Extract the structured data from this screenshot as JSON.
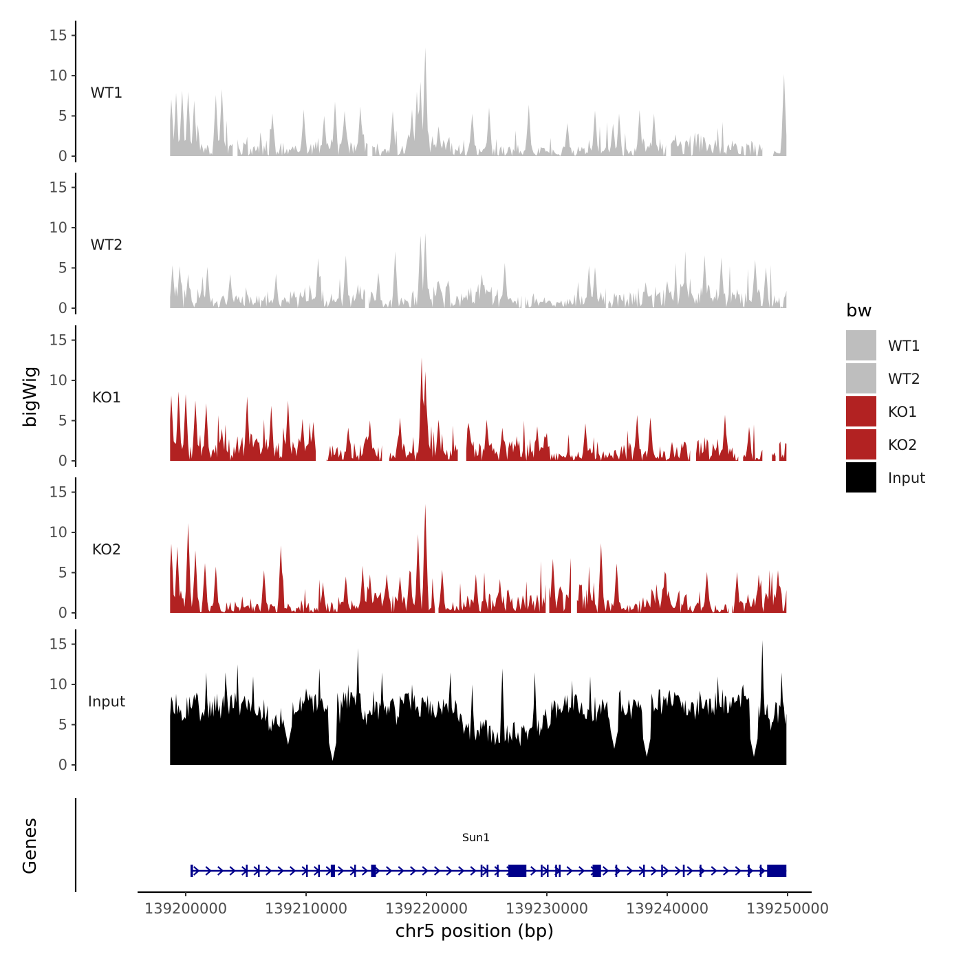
{
  "chart_data": {
    "type": "area",
    "chromosome": "chr5",
    "xlabel": "chr5 position (bp)",
    "ylabel": "bigWig",
    "genes_ylabel": "Genes",
    "xlim": [
      139196000,
      139252000
    ],
    "xticks": [
      139200000,
      139210000,
      139220000,
      139230000,
      139240000,
      139250000
    ],
    "ylim": [
      0,
      16
    ],
    "yticks": [
      0,
      5,
      10,
      15
    ],
    "legend": {
      "title": "bw",
      "position": "right",
      "entries": [
        {
          "label": "WT1",
          "color": "#bebebe"
        },
        {
          "label": "WT2",
          "color": "#bebebe"
        },
        {
          "label": "KO1",
          "color": "#b22222"
        },
        {
          "label": "KO2",
          "color": "#b22222"
        },
        {
          "label": "Input",
          "color": "#000000"
        }
      ]
    },
    "series": [
      {
        "name": "WT1",
        "color": "#bebebe",
        "x_start": 139198700,
        "bin_bp": 100,
        "gaps": [
          [
            139204000,
            139204250
          ],
          [
            139215200,
            139215400
          ],
          [
            139240000,
            139240250
          ],
          [
            139248000,
            139248750
          ]
        ],
        "peaks": [
          [
            139198800,
            7
          ],
          [
            139199200,
            7.5
          ],
          [
            139199700,
            8
          ],
          [
            139200200,
            8
          ],
          [
            139200700,
            6.5
          ],
          [
            139203000,
            8
          ],
          [
            139202500,
            7.5
          ],
          [
            139207200,
            5.2
          ],
          [
            139209800,
            5.5
          ],
          [
            139211500,
            5
          ],
          [
            139212400,
            6.5
          ],
          [
            139213200,
            5.5
          ],
          [
            139214500,
            6
          ],
          [
            139217200,
            5.5
          ],
          [
            139218800,
            5.5
          ],
          [
            139219900,
            13.5
          ],
          [
            139221000,
            3.5
          ],
          [
            139223800,
            5.2
          ],
          [
            139225200,
            6
          ],
          [
            139228500,
            6
          ],
          [
            139231700,
            4
          ],
          [
            139234000,
            5.5
          ],
          [
            139235500,
            4
          ],
          [
            139236000,
            5
          ],
          [
            139237700,
            5.5
          ],
          [
            139238900,
            5
          ],
          [
            139249700,
            10
          ],
          [
            139219200,
            8
          ],
          [
            139219500,
            9
          ]
        ]
      },
      {
        "name": "WT2",
        "color": "#bebebe",
        "x_start": 139198700,
        "bin_bp": 100,
        "gaps": [
          [
            139215000,
            139215150
          ],
          [
            139228000,
            139228100
          ],
          [
            139235000,
            139235050
          ]
        ],
        "peaks": [
          [
            139198900,
            5
          ],
          [
            139199500,
            5
          ],
          [
            139200200,
            4
          ],
          [
            139201800,
            5
          ],
          [
            139203700,
            4
          ],
          [
            139207500,
            4
          ],
          [
            139211000,
            6
          ],
          [
            139213300,
            6.5
          ],
          [
            139216000,
            4
          ],
          [
            139217400,
            7
          ],
          [
            139219500,
            9
          ],
          [
            139219900,
            9
          ],
          [
            139224600,
            4
          ],
          [
            139226500,
            5.5
          ],
          [
            139233500,
            5
          ],
          [
            139234000,
            5
          ],
          [
            139243100,
            6.5
          ],
          [
            139244500,
            6
          ],
          [
            139247300,
            6
          ],
          [
            139248200,
            5
          ]
        ]
      },
      {
        "name": "KO1",
        "color": "#b22222",
        "x_start": 139198700,
        "bin_bp": 100,
        "gaps": [
          [
            139210900,
            139211600
          ],
          [
            139216400,
            139216800
          ],
          [
            139222700,
            139223200
          ],
          [
            139242000,
            139242300
          ],
          [
            139246000,
            139246200
          ],
          [
            139248000,
            139248600
          ],
          [
            139249100,
            139249250
          ]
        ],
        "peaks": [
          [
            139198800,
            8
          ],
          [
            139199400,
            8.5
          ],
          [
            139200000,
            8
          ],
          [
            139200800,
            7.5
          ],
          [
            139201700,
            7
          ],
          [
            139203000,
            4
          ],
          [
            139205100,
            7.8
          ],
          [
            139207100,
            6.5
          ],
          [
            139208500,
            7.2
          ],
          [
            139209700,
            5
          ],
          [
            139210600,
            4.5
          ],
          [
            139213500,
            4
          ],
          [
            139215300,
            5
          ],
          [
            139217800,
            5
          ],
          [
            139219600,
            12.5
          ],
          [
            139219900,
            11
          ],
          [
            139221000,
            5
          ],
          [
            139223500,
            4.5
          ],
          [
            139225000,
            5
          ],
          [
            139226300,
            4
          ],
          [
            139229200,
            4
          ],
          [
            139233200,
            4.5
          ],
          [
            139237500,
            5.5
          ],
          [
            139238600,
            5.2
          ],
          [
            139244800,
            5.5
          ],
          [
            139246800,
            4
          ],
          [
            139248500,
            4
          ]
        ]
      },
      {
        "name": "KO2",
        "color": "#b22222",
        "x_start": 139198700,
        "bin_bp": 100,
        "gaps": [
          [
            139220800,
            139220900
          ],
          [
            139230000,
            139230100
          ],
          [
            139232100,
            139232400
          ],
          [
            139245200,
            139245300
          ]
        ],
        "peaks": [
          [
            139198800,
            8.5
          ],
          [
            139199300,
            8
          ],
          [
            139200200,
            11
          ],
          [
            139200800,
            7.5
          ],
          [
            139201600,
            6
          ],
          [
            139202500,
            5.5
          ],
          [
            139206500,
            5
          ],
          [
            139207900,
            8
          ],
          [
            139211400,
            3.5
          ],
          [
            139213300,
            4.5
          ],
          [
            139214700,
            5.5
          ],
          [
            139215300,
            4.5
          ],
          [
            139216700,
            4.5
          ],
          [
            139217800,
            4.5
          ],
          [
            139218600,
            5
          ],
          [
            139219300,
            9.5
          ],
          [
            139219900,
            13.5
          ],
          [
            139221300,
            5
          ],
          [
            139224100,
            4.5
          ],
          [
            139226100,
            4
          ],
          [
            139230500,
            6.5
          ],
          [
            139232000,
            6.5
          ],
          [
            139234500,
            8.5
          ],
          [
            139235800,
            6
          ],
          [
            139239800,
            5
          ],
          [
            139243300,
            5
          ],
          [
            139245800,
            5
          ],
          [
            139247600,
            4.5
          ],
          [
            139249200,
            5
          ]
        ]
      },
      {
        "name": "Input",
        "color": "#000000",
        "x_start": 139198700,
        "bin_bp": 100,
        "gaps": [],
        "peaks": [
          [
            139198800,
            8.5
          ],
          [
            139201700,
            11.5
          ],
          [
            139203300,
            11.5
          ],
          [
            139204300,
            12.5
          ],
          [
            139205600,
            11
          ],
          [
            139211100,
            12
          ],
          [
            139212000,
            9
          ],
          [
            139214300,
            14.5
          ],
          [
            139213500,
            10
          ],
          [
            139216300,
            11.5
          ],
          [
            139218800,
            10
          ],
          [
            139222000,
            11.5
          ],
          [
            139223800,
            10
          ],
          [
            139226300,
            12
          ],
          [
            139229000,
            11.5
          ],
          [
            139232100,
            10.5
          ],
          [
            139233600,
            11
          ],
          [
            139244200,
            11
          ],
          [
            139246300,
            10
          ],
          [
            139247900,
            15.5
          ],
          [
            139249500,
            11.5
          ]
        ],
        "troughs": [
          [
            139208500,
            2.5
          ],
          [
            139212200,
            0.5
          ],
          [
            139235600,
            2
          ],
          [
            139238300,
            1
          ],
          [
            139247200,
            1
          ]
        ]
      }
    ],
    "genes": [
      {
        "name": "Sun1",
        "strand": "+",
        "start": 139200400,
        "end": 139249900,
        "color": "#00008b",
        "exons": [
          [
            139200400,
            139200600
          ],
          [
            139205000,
            139205080
          ],
          [
            139206000,
            139206080
          ],
          [
            139210000,
            139210080
          ],
          [
            139211000,
            139211080
          ],
          [
            139212050,
            139212400
          ],
          [
            139214000,
            139214080
          ],
          [
            139215400,
            139215800
          ],
          [
            139224500,
            139224650
          ],
          [
            139225000,
            139225080
          ],
          [
            139225850,
            139225950
          ],
          [
            139226800,
            139228300
          ],
          [
            139229500,
            139229580
          ],
          [
            139230000,
            139230100
          ],
          [
            139230700,
            139230800
          ],
          [
            139231000,
            139231100
          ],
          [
            139233800,
            139234500
          ],
          [
            139235700,
            139235800
          ],
          [
            139238000,
            139238080
          ],
          [
            139239500,
            139239580
          ],
          [
            139241300,
            139241450
          ],
          [
            139242700,
            139242780
          ],
          [
            139246700,
            139246850
          ],
          [
            139247700,
            139247780
          ],
          [
            139248300,
            139249900
          ]
        ]
      }
    ]
  }
}
